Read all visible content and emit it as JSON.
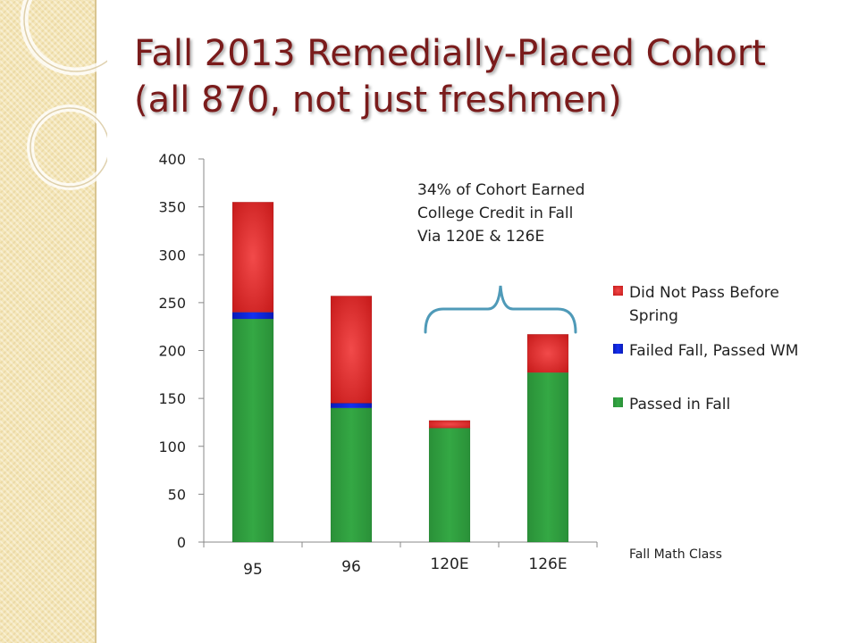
{
  "slide": {
    "title_line1": "Fall 2013 Remedially-Placed Cohort",
    "title_line2": "(all 870, not just freshmen)"
  },
  "chart_data": {
    "type": "bar",
    "stacked": true,
    "categories": [
      "95",
      "96",
      "120E",
      "126E"
    ],
    "series": [
      {
        "name": "Passed in Fall",
        "color": "#2e9a3e",
        "values": [
          233,
          140,
          119,
          177
        ]
      },
      {
        "name": "Failed Fall, Passed WM",
        "color": "#0b1fd6",
        "values": [
          7,
          5,
          0,
          0
        ]
      },
      {
        "name": "Did Not Pass Before Spring",
        "color": "#e02a2a",
        "values": [
          115,
          112,
          8,
          40
        ]
      }
    ],
    "ylim": [
      0,
      400
    ],
    "yticks": [
      0,
      50,
      100,
      150,
      200,
      250,
      300,
      350,
      400
    ],
    "xlabel": "Fall Math Class",
    "ylabel": "",
    "grid": false,
    "legend": "right",
    "annotation": {
      "lines": [
        "34% of Cohort Earned",
        "College Credit in Fall",
        "Via 120E & 126E"
      ],
      "brace_over": [
        "120E",
        "126E"
      ]
    }
  }
}
